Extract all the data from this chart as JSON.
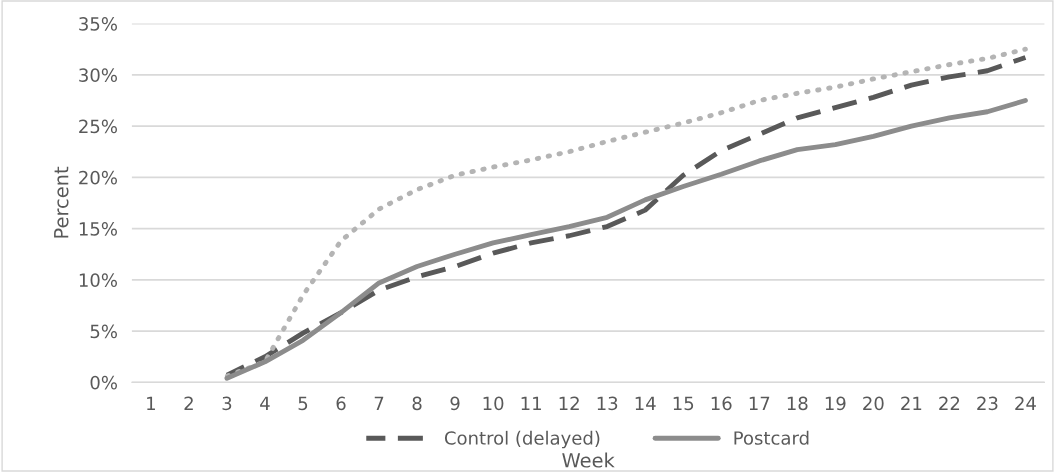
{
  "chart_data": {
    "type": "line",
    "xlabel": "Week",
    "ylabel": "Percent",
    "categories": [
      "1",
      "2",
      "3",
      "4",
      "5",
      "6",
      "7",
      "8",
      "9",
      "10",
      "11",
      "12",
      "13",
      "14",
      "15",
      "16",
      "17",
      "18",
      "19",
      "20",
      "21",
      "22",
      "23",
      "24"
    ],
    "series": [
      {
        "name": "Control (delayed)",
        "color": "#595959",
        "line_style": "dashed",
        "values": [
          null,
          null,
          0.7,
          2.5,
          4.8,
          6.8,
          9.0,
          10.3,
          11.3,
          12.6,
          13.6,
          14.3,
          15.2,
          16.8,
          20.2,
          22.6,
          24.2,
          25.8,
          26.8,
          27.8,
          29.0,
          29.8,
          30.4,
          31.7
        ]
      },
      {
        "color": "#b4b4b4",
        "line_style": "dotted",
        "values": [
          null,
          null,
          0.6,
          2.0,
          8.5,
          13.8,
          16.9,
          18.8,
          20.2,
          21.0,
          21.7,
          22.5,
          23.5,
          24.4,
          25.3,
          26.3,
          27.5,
          28.2,
          28.8,
          29.6,
          30.3,
          31.0,
          31.6,
          32.5
        ]
      },
      {
        "name": "Postcard",
        "color": "#8c8c8c",
        "line_style": "solid",
        "values": [
          null,
          null,
          0.4,
          2.0,
          4.1,
          6.8,
          9.7,
          11.3,
          12.5,
          13.6,
          14.4,
          15.2,
          16.1,
          17.8,
          19.1,
          20.3,
          21.6,
          22.7,
          23.2,
          24.0,
          25.0,
          25.8,
          26.4,
          27.5
        ]
      }
    ],
    "ylim": [
      0,
      35
    ],
    "yticks": [
      {
        "value": 0,
        "label": "0%"
      },
      {
        "value": 5,
        "label": "5%"
      },
      {
        "value": 10,
        "label": "10%"
      },
      {
        "value": 15,
        "label": "15%"
      },
      {
        "value": 20,
        "label": "20%"
      },
      {
        "value": 25,
        "label": "25%"
      },
      {
        "value": 30,
        "label": "30%"
      },
      {
        "value": 35,
        "label": "35%"
      }
    ],
    "grid": "y",
    "legend": "bottom",
    "marker": "none"
  }
}
